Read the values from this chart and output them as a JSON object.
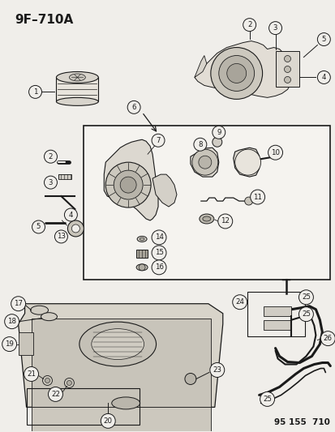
{
  "title": "9F–710A",
  "bg_color": "#f0eeea",
  "line_color": "#1a1a1a",
  "footer": "95 155  710",
  "fig_w": 4.14,
  "fig_h": 5.33,
  "dpi": 100,
  "label_fontsize": 6.5,
  "label_circle_r": 0.016,
  "title_fontsize": 11
}
